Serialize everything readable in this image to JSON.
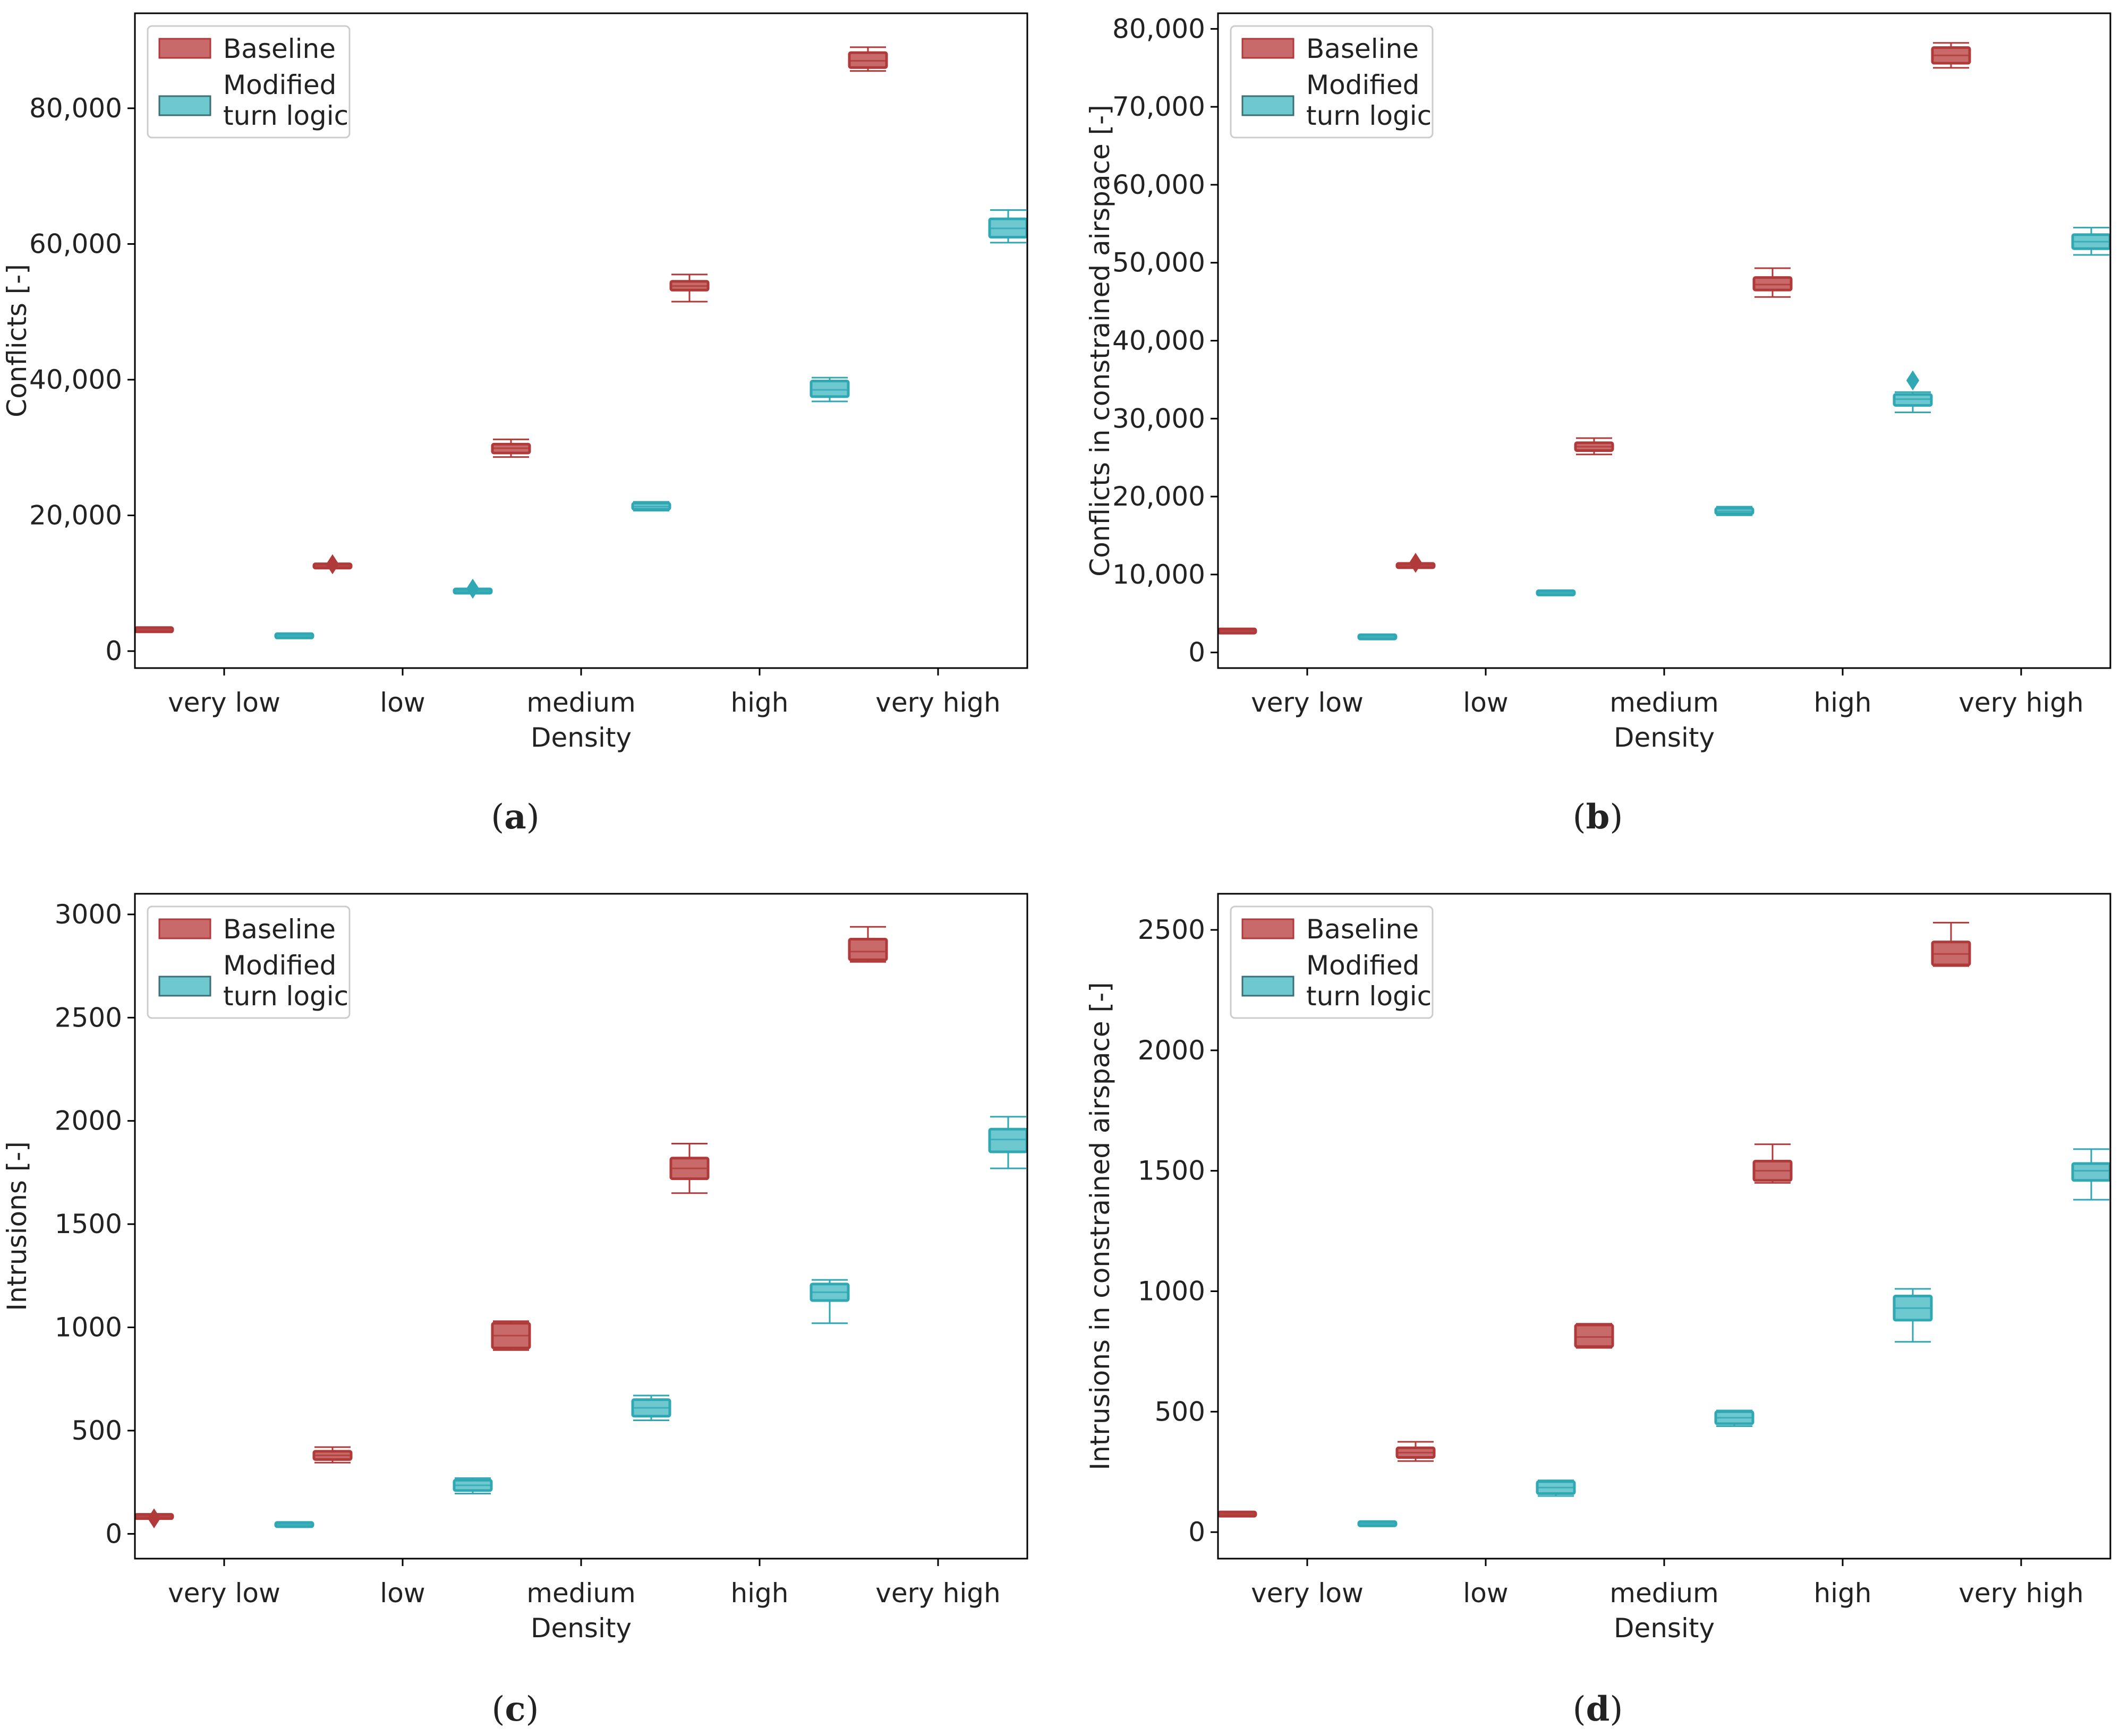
{
  "colors": {
    "baseline_fill": "#c96a6a",
    "baseline_line": "#b03a3a",
    "modified_fill": "#6ec8d0",
    "modified_line": "#2fa8b4"
  },
  "chart_data": [
    {
      "type": "boxplot",
      "panel_label": "(a)",
      "panel_letter": "a",
      "xlabel": "Density",
      "ylabel": "Conflicts [-]",
      "categories": [
        "very low",
        "low",
        "medium",
        "high",
        "very high"
      ],
      "ylim": [
        -2500,
        94000
      ],
      "yticks": [
        0,
        20000,
        40000,
        60000,
        80000
      ],
      "ytick_labels": [
        "0",
        "20,000",
        "40,000",
        "60,000",
        "80,000"
      ],
      "legend": {
        "placement": "top-left",
        "labels": [
          "Baseline",
          "Modified turn logic"
        ]
      },
      "series": [
        {
          "name": "Baseline",
          "boxes": [
            {
              "wl": 3000,
              "q1": 3050,
              "median": 3150,
              "q3": 3250,
              "wh": 3300
            },
            {
              "wl": 12300,
              "q1": 12400,
              "median": 12550,
              "q3": 12700,
              "wh": 12800,
              "outliers": [
                12800
              ]
            },
            {
              "wl": 28600,
              "q1": 29200,
              "median": 29900,
              "q3": 30500,
              "wh": 31200
            },
            {
              "wl": 51500,
              "q1": 53200,
              "median": 53800,
              "q3": 54500,
              "wh": 55500
            },
            {
              "wl": 85500,
              "q1": 86000,
              "median": 87000,
              "q3": 88200,
              "wh": 89000
            }
          ]
        },
        {
          "name": "Modified turn logic",
          "boxes": [
            {
              "wl": 2150,
              "q1": 2200,
              "median": 2250,
              "q3": 2300,
              "wh": 2350
            },
            {
              "wl": 8600,
              "q1": 8700,
              "median": 8850,
              "q3": 9000,
              "wh": 9100,
              "outliers": [
                9200
              ]
            },
            {
              "wl": 20700,
              "q1": 20900,
              "median": 21300,
              "q3": 21800,
              "wh": 22000
            },
            {
              "wl": 36800,
              "q1": 37500,
              "median": 38500,
              "q3": 39800,
              "wh": 40300
            },
            {
              "wl": 60200,
              "q1": 61000,
              "median": 62300,
              "q3": 63700,
              "wh": 65000
            }
          ]
        }
      ]
    },
    {
      "type": "boxplot",
      "panel_label": "(b)",
      "panel_letter": "b",
      "xlabel": "Density",
      "ylabel": "Conflicts in constrained airspace [-]",
      "categories": [
        "very low",
        "low",
        "medium",
        "high",
        "very high"
      ],
      "ylim": [
        -2000,
        82000
      ],
      "yticks": [
        0,
        10000,
        20000,
        30000,
        40000,
        50000,
        60000,
        70000,
        80000
      ],
      "ytick_labels": [
        "0",
        "10,000",
        "20,000",
        "30,000",
        "40,000",
        "50,000",
        "60,000",
        "70,000",
        "80,000"
      ],
      "legend": {
        "placement": "top-left",
        "labels": [
          "Baseline",
          "Modified turn logic"
        ]
      },
      "series": [
        {
          "name": "Baseline",
          "boxes": [
            {
              "wl": 2600,
              "q1": 2650,
              "median": 2750,
              "q3": 2850,
              "wh": 2900
            },
            {
              "wl": 10900,
              "q1": 11000,
              "median": 11150,
              "q3": 11300,
              "wh": 11400,
              "outliers": [
                11500
              ]
            },
            {
              "wl": 25400,
              "q1": 25900,
              "median": 26400,
              "q3": 26900,
              "wh": 27500
            },
            {
              "wl": 45600,
              "q1": 46500,
              "median": 47200,
              "q3": 48100,
              "wh": 49300
            },
            {
              "wl": 75000,
              "q1": 75600,
              "median": 76600,
              "q3": 77600,
              "wh": 78200
            }
          ]
        },
        {
          "name": "Modified turn logic",
          "boxes": [
            {
              "wl": 1900,
              "q1": 1950,
              "median": 2000,
              "q3": 2050,
              "wh": 2100
            },
            {
              "wl": 7500,
              "q1": 7550,
              "median": 7650,
              "q3": 7750,
              "wh": 7800
            },
            {
              "wl": 17600,
              "q1": 17800,
              "median": 18100,
              "q3": 18500,
              "wh": 18700
            },
            {
              "wl": 30800,
              "q1": 31700,
              "median": 32500,
              "q3": 33100,
              "wh": 33400,
              "outliers": [
                34900
              ]
            },
            {
              "wl": 51000,
              "q1": 51800,
              "median": 52700,
              "q3": 53600,
              "wh": 54500
            }
          ]
        }
      ]
    },
    {
      "type": "boxplot",
      "panel_label": "(c)",
      "panel_letter": "c",
      "xlabel": "Density",
      "ylabel": "Intrusions [-]",
      "categories": [
        "very low",
        "low",
        "medium",
        "high",
        "very high"
      ],
      "ylim": [
        -120,
        3100
      ],
      "yticks": [
        0,
        500,
        1000,
        1500,
        2000,
        2500,
        3000
      ],
      "ytick_labels": [
        "0",
        "500",
        "1000",
        "1500",
        "2000",
        "2500",
        "3000"
      ],
      "legend": {
        "placement": "top-left",
        "labels": [
          "Baseline",
          "Modified turn logic"
        ]
      },
      "series": [
        {
          "name": "Baseline",
          "boxes": [
            {
              "wl": 78,
              "q1": 80,
              "median": 84,
              "q3": 88,
              "wh": 92,
              "outliers": [
                75
              ]
            },
            {
              "wl": 345,
              "q1": 360,
              "median": 380,
              "q3": 400,
              "wh": 420
            },
            {
              "wl": 890,
              "q1": 900,
              "median": 960,
              "q3": 1020,
              "wh": 1030
            },
            {
              "wl": 1650,
              "q1": 1720,
              "median": 1770,
              "q3": 1820,
              "wh": 1890
            },
            {
              "wl": 2770,
              "q1": 2780,
              "median": 2820,
              "q3": 2880,
              "wh": 2940
            }
          ]
        },
        {
          "name": "Modified turn logic",
          "boxes": [
            {
              "wl": 38,
              "q1": 40,
              "median": 45,
              "q3": 50,
              "wh": 53
            },
            {
              "wl": 195,
              "q1": 210,
              "median": 235,
              "q3": 260,
              "wh": 270
            },
            {
              "wl": 550,
              "q1": 570,
              "median": 610,
              "q3": 650,
              "wh": 670
            },
            {
              "wl": 1020,
              "q1": 1130,
              "median": 1170,
              "q3": 1210,
              "wh": 1230
            },
            {
              "wl": 1770,
              "q1": 1850,
              "median": 1910,
              "q3": 1960,
              "wh": 2020
            }
          ]
        }
      ]
    },
    {
      "type": "boxplot",
      "panel_label": "(d)",
      "panel_letter": "d",
      "xlabel": "Density",
      "ylabel": "Intrusions in constrained airspace [-]",
      "categories": [
        "very low",
        "low",
        "medium",
        "high",
        "very high"
      ],
      "ylim": [
        -110,
        2650
      ],
      "yticks": [
        0,
        500,
        1000,
        1500,
        2000,
        2500
      ],
      "ytick_labels": [
        "0",
        "500",
        "1000",
        "1500",
        "2000",
        "2500"
      ],
      "legend": {
        "placement": "top-left",
        "labels": [
          "Baseline",
          "Modified turn logic"
        ]
      },
      "series": [
        {
          "name": "Baseline",
          "boxes": [
            {
              "wl": 68,
              "q1": 70,
              "median": 75,
              "q3": 80,
              "wh": 82
            },
            {
              "wl": 295,
              "q1": 310,
              "median": 330,
              "q3": 350,
              "wh": 375
            },
            {
              "wl": 765,
              "q1": 770,
              "median": 810,
              "q3": 860,
              "wh": 865
            },
            {
              "wl": 1450,
              "q1": 1460,
              "median": 1500,
              "q3": 1540,
              "wh": 1610
            },
            {
              "wl": 2350,
              "q1": 2355,
              "median": 2400,
              "q3": 2450,
              "wh": 2530
            }
          ]
        },
        {
          "name": "Modified turn logic",
          "boxes": [
            {
              "wl": 28,
              "q1": 30,
              "median": 35,
              "q3": 40,
              "wh": 42
            },
            {
              "wl": 150,
              "q1": 160,
              "median": 185,
              "q3": 210,
              "wh": 215
            },
            {
              "wl": 440,
              "q1": 450,
              "median": 475,
              "q3": 500,
              "wh": 505
            },
            {
              "wl": 790,
              "q1": 880,
              "median": 930,
              "q3": 980,
              "wh": 1010
            },
            {
              "wl": 1380,
              "q1": 1460,
              "median": 1500,
              "q3": 1530,
              "wh": 1590
            }
          ]
        }
      ]
    }
  ]
}
